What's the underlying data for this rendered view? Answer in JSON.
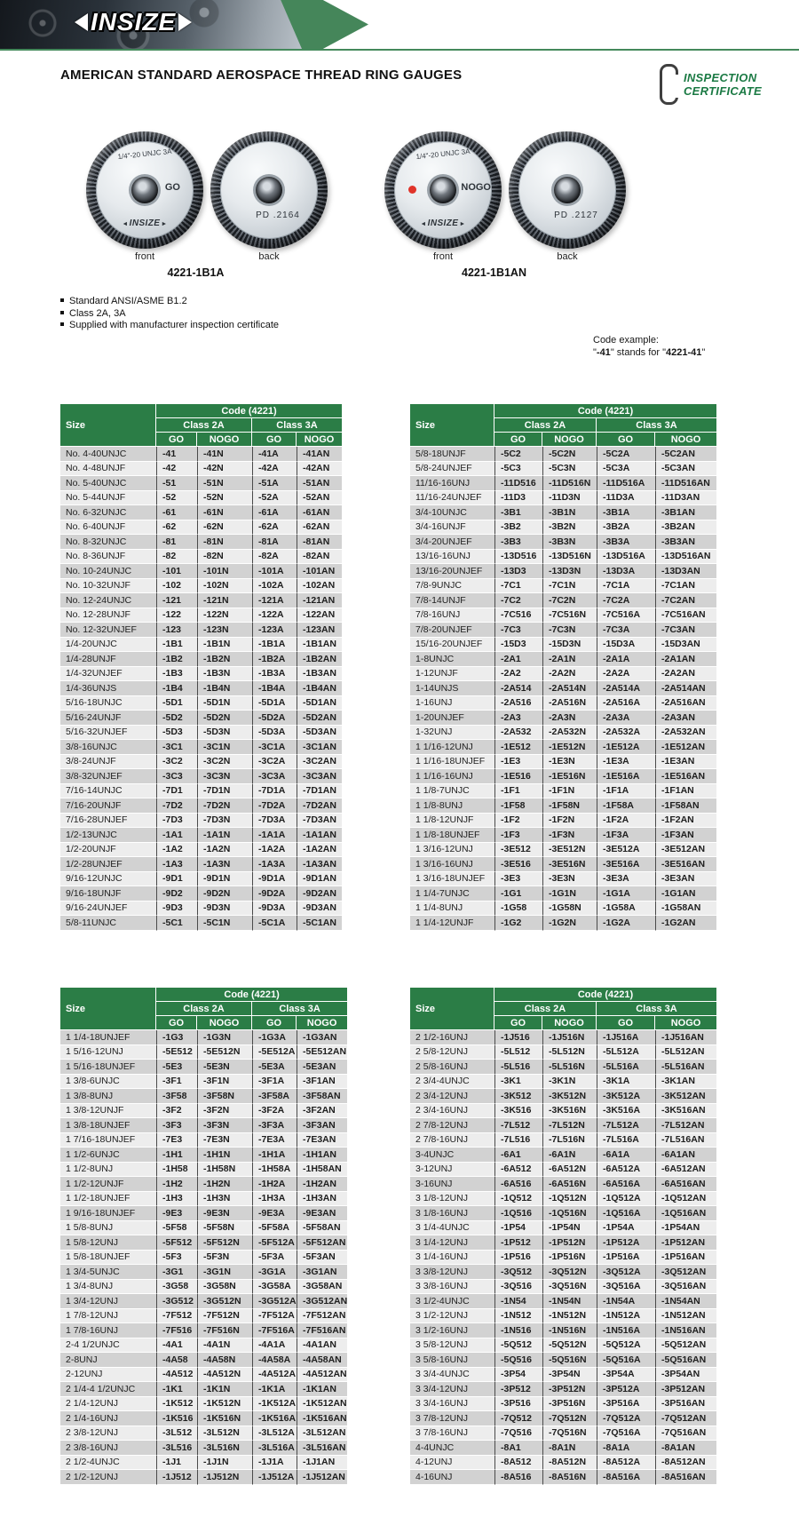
{
  "header": {
    "logo": "INSIZE",
    "title": "AMERICAN STANDARD AEROSPACE  THREAD RING GAUGES",
    "certificate_line1": "INSPECTION",
    "certificate_line2": "CERTIFICATE"
  },
  "colors": {
    "brand_green": "#2b7d46",
    "band_green": "#45865a",
    "certificate_green": "#1b7a44",
    "stripe_dark": "#d2d2d2",
    "stripe_light": "#ededed",
    "nogo_dot_red": "#e0342a"
  },
  "products": [
    {
      "code": "4221-1B1A",
      "marking": "1/4\"-20 UNJC 3A",
      "face_label": "GO",
      "pd": "PD  .2164",
      "front_label": "front",
      "back_label": "back",
      "logo": "INSIZE"
    },
    {
      "code": "4221-1B1AN",
      "marking": "1/4\"-20 UNJC 3A",
      "face_label": "NOGO",
      "pd": "PD  .2127",
      "front_label": "front",
      "back_label": "back",
      "logo": "INSIZE"
    }
  ],
  "features": {
    "items": [
      "Standard ANSI/ASME B1.2",
      "Class 2A, 3A",
      "Supplied with manufacturer inspection certificate"
    ]
  },
  "code_example": {
    "label": "Code example:",
    "q_open": "\"",
    "code1": "-41",
    "middle": "\" stands for \"",
    "code2": "4221-41",
    "q_close": "\""
  },
  "tables": {
    "code_label": "Code (4221)",
    "size_label": "Size",
    "class2a_label": "Class 2A",
    "class3a_label": "Class 3A",
    "go_label": "GO",
    "nogo_label": "NOGO",
    "groups": [
      {
        "rows": [
          [
            "No. 4-40UNJC",
            "-41",
            "-41N",
            "-41A",
            "-41AN"
          ],
          [
            "No. 4-48UNJF",
            "-42",
            "-42N",
            "-42A",
            "-42AN"
          ],
          [
            "No. 5-40UNJC",
            "-51",
            "-51N",
            "-51A",
            "-51AN"
          ],
          [
            "No. 5-44UNJF",
            "-52",
            "-52N",
            "-52A",
            "-52AN"
          ],
          [
            "No. 6-32UNJC",
            "-61",
            "-61N",
            "-61A",
            "-61AN"
          ],
          [
            "No. 6-40UNJF",
            "-62",
            "-62N",
            "-62A",
            "-62AN"
          ],
          [
            "No. 8-32UNJC",
            "-81",
            "-81N",
            "-81A",
            "-81AN"
          ],
          [
            "No. 8-36UNJF",
            "-82",
            "-82N",
            "-82A",
            "-82AN"
          ],
          [
            "No. 10-24UNJC",
            "-101",
            "-101N",
            "-101A",
            "-101AN"
          ],
          [
            "No. 10-32UNJF",
            "-102",
            "-102N",
            "-102A",
            "-102AN"
          ],
          [
            "No. 12-24UNJC",
            "-121",
            "-121N",
            "-121A",
            "-121AN"
          ],
          [
            "No. 12-28UNJF",
            "-122",
            "-122N",
            "-122A",
            "-122AN"
          ],
          [
            "No. 12-32UNJEF",
            "-123",
            "-123N",
            "-123A",
            "-123AN"
          ],
          [
            "1/4-20UNJC",
            "-1B1",
            "-1B1N",
            "-1B1A",
            "-1B1AN"
          ],
          [
            "1/4-28UNJF",
            "-1B2",
            "-1B2N",
            "-1B2A",
            "-1B2AN"
          ],
          [
            "1/4-32UNJEF",
            "-1B3",
            "-1B3N",
            "-1B3A",
            "-1B3AN"
          ],
          [
            "1/4-36UNJS",
            "-1B4",
            "-1B4N",
            "-1B4A",
            "-1B4AN"
          ],
          [
            "5/16-18UNJC",
            "-5D1",
            "-5D1N",
            "-5D1A",
            "-5D1AN"
          ],
          [
            "5/16-24UNJF",
            "-5D2",
            "-5D2N",
            "-5D2A",
            "-5D2AN"
          ],
          [
            "5/16-32UNJEF",
            "-5D3",
            "-5D3N",
            "-5D3A",
            "-5D3AN"
          ],
          [
            "3/8-16UNJC",
            "-3C1",
            "-3C1N",
            "-3C1A",
            "-3C1AN"
          ],
          [
            "3/8-24UNJF",
            "-3C2",
            "-3C2N",
            "-3C2A",
            "-3C2AN"
          ],
          [
            "3/8-32UNJEF",
            "-3C3",
            "-3C3N",
            "-3C3A",
            "-3C3AN"
          ],
          [
            "7/16-14UNJC",
            "-7D1",
            "-7D1N",
            "-7D1A",
            "-7D1AN"
          ],
          [
            "7/16-20UNJF",
            "-7D2",
            "-7D2N",
            "-7D2A",
            "-7D2AN"
          ],
          [
            "7/16-28UNJEF",
            "-7D3",
            "-7D3N",
            "-7D3A",
            "-7D3AN"
          ],
          [
            "1/2-13UNJC",
            "-1A1",
            "-1A1N",
            "-1A1A",
            "-1A1AN"
          ],
          [
            "1/2-20UNJF",
            "-1A2",
            "-1A2N",
            "-1A2A",
            "-1A2AN"
          ],
          [
            "1/2-28UNJEF",
            "-1A3",
            "-1A3N",
            "-1A3A",
            "-1A3AN"
          ],
          [
            "9/16-12UNJC",
            "-9D1",
            "-9D1N",
            "-9D1A",
            "-9D1AN"
          ],
          [
            "9/16-18UNJF",
            "-9D2",
            "-9D2N",
            "-9D2A",
            "-9D2AN"
          ],
          [
            "9/16-24UNJEF",
            "-9D3",
            "-9D3N",
            "-9D3A",
            "-9D3AN"
          ],
          [
            "5/8-11UNJC",
            "-5C1",
            "-5C1N",
            "-5C1A",
            "-5C1AN"
          ]
        ]
      },
      {
        "rows": [
          [
            "5/8-18UNJF",
            "-5C2",
            "-5C2N",
            "-5C2A",
            "-5C2AN"
          ],
          [
            "5/8-24UNJEF",
            "-5C3",
            "-5C3N",
            "-5C3A",
            "-5C3AN"
          ],
          [
            "11/16-16UNJ",
            "-11D516",
            "-11D516N",
            "-11D516A",
            "-11D516AN"
          ],
          [
            "11/16-24UNJEF",
            "-11D3",
            "-11D3N",
            "-11D3A",
            "-11D3AN"
          ],
          [
            "3/4-10UNJC",
            "-3B1",
            "-3B1N",
            "-3B1A",
            "-3B1AN"
          ],
          [
            "3/4-16UNJF",
            "-3B2",
            "-3B2N",
            "-3B2A",
            "-3B2AN"
          ],
          [
            "3/4-20UNJEF",
            "-3B3",
            "-3B3N",
            "-3B3A",
            "-3B3AN"
          ],
          [
            "13/16-16UNJ",
            "-13D516",
            "-13D516N",
            "-13D516A",
            "-13D516AN"
          ],
          [
            "13/16-20UNJEF",
            "-13D3",
            "-13D3N",
            "-13D3A",
            "-13D3AN"
          ],
          [
            "7/8-9UNJC",
            "-7C1",
            "-7C1N",
            "-7C1A",
            "-7C1AN"
          ],
          [
            "7/8-14UNJF",
            "-7C2",
            "-7C2N",
            "-7C2A",
            "-7C2AN"
          ],
          [
            "7/8-16UNJ",
            "-7C516",
            "-7C516N",
            "-7C516A",
            "-7C516AN"
          ],
          [
            "7/8-20UNJEF",
            "-7C3",
            "-7C3N",
            "-7C3A",
            "-7C3AN"
          ],
          [
            "15/16-20UNJEF",
            "-15D3",
            "-15D3N",
            "-15D3A",
            "-15D3AN"
          ],
          [
            "1-8UNJC",
            "-2A1",
            "-2A1N",
            "-2A1A",
            "-2A1AN"
          ],
          [
            "1-12UNJF",
            "-2A2",
            "-2A2N",
            "-2A2A",
            "-2A2AN"
          ],
          [
            "1-14UNJS",
            "-2A514",
            "-2A514N",
            "-2A514A",
            "-2A514AN"
          ],
          [
            "1-16UNJ",
            "-2A516",
            "-2A516N",
            "-2A516A",
            "-2A516AN"
          ],
          [
            "1-20UNJEF",
            "-2A3",
            "-2A3N",
            "-2A3A",
            "-2A3AN"
          ],
          [
            "1-32UNJ",
            "-2A532",
            "-2A532N",
            "-2A532A",
            "-2A532AN"
          ],
          [
            "1 1/16-12UNJ",
            "-1E512",
            "-1E512N",
            "-1E512A",
            "-1E512AN"
          ],
          [
            "1 1/16-18UNJEF",
            "-1E3",
            "-1E3N",
            "-1E3A",
            "-1E3AN"
          ],
          [
            "1 1/16-16UNJ",
            "-1E516",
            "-1E516N",
            "-1E516A",
            "-1E516AN"
          ],
          [
            "1 1/8-7UNJC",
            "-1F1",
            "-1F1N",
            "-1F1A",
            "-1F1AN"
          ],
          [
            "1 1/8-8UNJ",
            "-1F58",
            "-1F58N",
            "-1F58A",
            "-1F58AN"
          ],
          [
            "1 1/8-12UNJF",
            "-1F2",
            "-1F2N",
            "-1F2A",
            "-1F2AN"
          ],
          [
            "1 1/8-18UNJEF",
            "-1F3",
            "-1F3N",
            "-1F3A",
            "-1F3AN"
          ],
          [
            "1 3/16-12UNJ",
            "-3E512",
            "-3E512N",
            "-3E512A",
            "-3E512AN"
          ],
          [
            "1 3/16-16UNJ",
            "-3E516",
            "-3E516N",
            "-3E516A",
            "-3E516AN"
          ],
          [
            "1 3/16-18UNJEF",
            "-3E3",
            "-3E3N",
            "-3E3A",
            "-3E3AN"
          ],
          [
            "1 1/4-7UNJC",
            "-1G1",
            "-1G1N",
            "-1G1A",
            "-1G1AN"
          ],
          [
            "1 1/4-8UNJ",
            "-1G58",
            "-1G58N",
            "-1G58A",
            "-1G58AN"
          ],
          [
            "1 1/4-12UNJF",
            "-1G2",
            "-1G2N",
            "-1G2A",
            "-1G2AN"
          ]
        ]
      },
      {
        "rows": [
          [
            "1 1/4-18UNJEF",
            "-1G3",
            "-1G3N",
            "-1G3A",
            "-1G3AN"
          ],
          [
            "1 5/16-12UNJ",
            "-5E512",
            "-5E512N",
            "-5E512A",
            "-5E512AN"
          ],
          [
            "1 5/16-18UNJEF",
            "-5E3",
            "-5E3N",
            "-5E3A",
            "-5E3AN"
          ],
          [
            "1 3/8-6UNJC",
            "-3F1",
            "-3F1N",
            "-3F1A",
            "-3F1AN"
          ],
          [
            "1 3/8-8UNJ",
            "-3F58",
            "-3F58N",
            "-3F58A",
            "-3F58AN"
          ],
          [
            "1 3/8-12UNJF",
            "-3F2",
            "-3F2N",
            "-3F2A",
            "-3F2AN"
          ],
          [
            "1 3/8-18UNJEF",
            "-3F3",
            "-3F3N",
            "-3F3A",
            "-3F3AN"
          ],
          [
            "1 7/16-18UNJEF",
            "-7E3",
            "-7E3N",
            "-7E3A",
            "-7E3AN"
          ],
          [
            "1 1/2-6UNJC",
            "-1H1",
            "-1H1N",
            "-1H1A",
            "-1H1AN"
          ],
          [
            "1 1/2-8UNJ",
            "-1H58",
            "-1H58N",
            "-1H58A",
            "-1H58AN"
          ],
          [
            "1 1/2-12UNJF",
            "-1H2",
            "-1H2N",
            "-1H2A",
            "-1H2AN"
          ],
          [
            "1 1/2-18UNJEF",
            "-1H3",
            "-1H3N",
            "-1H3A",
            "-1H3AN"
          ],
          [
            "1 9/16-18UNJEF",
            "-9E3",
            "-9E3N",
            "-9E3A",
            "-9E3AN"
          ],
          [
            "1 5/8-8UNJ",
            "-5F58",
            "-5F58N",
            "-5F58A",
            "-5F58AN"
          ],
          [
            "1 5/8-12UNJ",
            "-5F512",
            "-5F512N",
            "-5F512A",
            "-5F512AN"
          ],
          [
            "1 5/8-18UNJEF",
            "-5F3",
            "-5F3N",
            "-5F3A",
            "-5F3AN"
          ],
          [
            "1 3/4-5UNJC",
            "-3G1",
            "-3G1N",
            "-3G1A",
            "-3G1AN"
          ],
          [
            "1 3/4-8UNJ",
            "-3G58",
            "-3G58N",
            "-3G58A",
            "-3G58AN"
          ],
          [
            "1 3/4-12UNJ",
            "-3G512",
            "-3G512N",
            "-3G512A",
            "-3G512AN"
          ],
          [
            "1 7/8-12UNJ",
            "-7F512",
            "-7F512N",
            "-7F512A",
            "-7F512AN"
          ],
          [
            "1 7/8-16UNJ",
            "-7F516",
            "-7F516N",
            "-7F516A",
            "-7F516AN"
          ],
          [
            "2-4 1/2UNJC",
            "-4A1",
            "-4A1N",
            "-4A1A",
            "-4A1AN"
          ],
          [
            "2-8UNJ",
            "-4A58",
            "-4A58N",
            "-4A58A",
            "-4A58AN"
          ],
          [
            "2-12UNJ",
            "-4A512",
            "-4A512N",
            "-4A512A",
            "-4A512AN"
          ],
          [
            "2 1/4-4 1/2UNJC",
            "-1K1",
            "-1K1N",
            "-1K1A",
            "-1K1AN"
          ],
          [
            "2 1/4-12UNJ",
            "-1K512",
            "-1K512N",
            "-1K512A",
            "-1K512AN"
          ],
          [
            "2 1/4-16UNJ",
            "-1K516",
            "-1K516N",
            "-1K516A",
            "-1K516AN"
          ],
          [
            "2 3/8-12UNJ",
            "-3L512",
            "-3L512N",
            "-3L512A",
            "-3L512AN"
          ],
          [
            "2 3/8-16UNJ",
            "-3L516",
            "-3L516N",
            "-3L516A",
            "-3L516AN"
          ],
          [
            "2 1/2-4UNJC",
            "-1J1",
            "-1J1N",
            "-1J1A",
            "-1J1AN"
          ],
          [
            "2 1/2-12UNJ",
            "-1J512",
            "-1J512N",
            "-1J512A",
            "-1J512AN"
          ]
        ]
      },
      {
        "rows": [
          [
            "2 1/2-16UNJ",
            "-1J516",
            "-1J516N",
            "-1J516A",
            "-1J516AN"
          ],
          [
            "2 5/8-12UNJ",
            "-5L512",
            "-5L512N",
            "-5L512A",
            "-5L512AN"
          ],
          [
            "2 5/8-16UNJ",
            "-5L516",
            "-5L516N",
            "-5L516A",
            "-5L516AN"
          ],
          [
            "2 3/4-4UNJC",
            "-3K1",
            "-3K1N",
            "-3K1A",
            "-3K1AN"
          ],
          [
            "2 3/4-12UNJ",
            "-3K512",
            "-3K512N",
            "-3K512A",
            "-3K512AN"
          ],
          [
            "2 3/4-16UNJ",
            "-3K516",
            "-3K516N",
            "-3K516A",
            "-3K516AN"
          ],
          [
            "2 7/8-12UNJ",
            "-7L512",
            "-7L512N",
            "-7L512A",
            "-7L512AN"
          ],
          [
            "2 7/8-16UNJ",
            "-7L516",
            "-7L516N",
            "-7L516A",
            "-7L516AN"
          ],
          [
            "3-4UNJC",
            "-6A1",
            "-6A1N",
            "-6A1A",
            "-6A1AN"
          ],
          [
            "3-12UNJ",
            "-6A512",
            "-6A512N",
            "-6A512A",
            "-6A512AN"
          ],
          [
            "3-16UNJ",
            "-6A516",
            "-6A516N",
            "-6A516A",
            "-6A516AN"
          ],
          [
            "3 1/8-12UNJ",
            "-1Q512",
            "-1Q512N",
            "-1Q512A",
            "-1Q512AN"
          ],
          [
            "3 1/8-16UNJ",
            "-1Q516",
            "-1Q516N",
            "-1Q516A",
            "-1Q516AN"
          ],
          [
            "3 1/4-4UNJC",
            "-1P54",
            "-1P54N",
            "-1P54A",
            "-1P54AN"
          ],
          [
            "3 1/4-12UNJ",
            "-1P512",
            "-1P512N",
            "-1P512A",
            "-1P512AN"
          ],
          [
            "3 1/4-16UNJ",
            "-1P516",
            "-1P516N",
            "-1P516A",
            "-1P516AN"
          ],
          [
            "3 3/8-12UNJ",
            "-3Q512",
            "-3Q512N",
            "-3Q512A",
            "-3Q512AN"
          ],
          [
            "3 3/8-16UNJ",
            "-3Q516",
            "-3Q516N",
            "-3Q516A",
            "-3Q516AN"
          ],
          [
            "3 1/2-4UNJC",
            "-1N54",
            "-1N54N",
            "-1N54A",
            "-1N54AN"
          ],
          [
            "3 1/2-12UNJ",
            "-1N512",
            "-1N512N",
            "-1N512A",
            "-1N512AN"
          ],
          [
            "3 1/2-16UNJ",
            "-1N516",
            "-1N516N",
            "-1N516A",
            "-1N516AN"
          ],
          [
            "3 5/8-12UNJ",
            "-5Q512",
            "-5Q512N",
            "-5Q512A",
            "-5Q512AN"
          ],
          [
            "3 5/8-16UNJ",
            "-5Q516",
            "-5Q516N",
            "-5Q516A",
            "-5Q516AN"
          ],
          [
            "3 3/4-4UNJC",
            "-3P54",
            "-3P54N",
            "-3P54A",
            "-3P54AN"
          ],
          [
            "3 3/4-12UNJ",
            "-3P512",
            "-3P512N",
            "-3P512A",
            "-3P512AN"
          ],
          [
            "3 3/4-16UNJ",
            "-3P516",
            "-3P516N",
            "-3P516A",
            "-3P516AN"
          ],
          [
            "3 7/8-12UNJ",
            "-7Q512",
            "-7Q512N",
            "-7Q512A",
            "-7Q512AN"
          ],
          [
            "3 7/8-16UNJ",
            "-7Q516",
            "-7Q516N",
            "-7Q516A",
            "-7Q516AN"
          ],
          [
            "4-4UNJC",
            "-8A1",
            "-8A1N",
            "-8A1A",
            "-8A1AN"
          ],
          [
            "4-12UNJ",
            "-8A512",
            "-8A512N",
            "-8A512A",
            "-8A512AN"
          ],
          [
            "4-16UNJ",
            "-8A516",
            "-8A516N",
            "-8A516A",
            "-8A516AN"
          ]
        ]
      }
    ]
  }
}
